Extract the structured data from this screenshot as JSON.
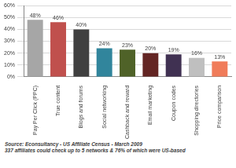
{
  "chart_data": {
    "type": "bar",
    "categories": [
      "Pay Per Click (PPC)",
      "True content",
      "Blogs and forums",
      "Social networking",
      "Cashback and reward",
      "Email marketing",
      "Coupon codes",
      "Shopping directories",
      "Price comparison"
    ],
    "values": [
      48,
      46,
      40,
      24,
      23,
      20,
      19,
      16,
      13
    ],
    "value_labels": [
      "48%",
      "46%",
      "40%",
      "24%",
      "23%",
      "20%",
      "19%",
      "16%",
      "13%"
    ],
    "data_labels": true,
    "colors": [
      "#a6a6a6",
      "#c0504d",
      "#404040",
      "#31859c",
      "#4f6228",
      "#632523",
      "#403152",
      "#bfbfbf",
      "#f07c5a"
    ],
    "ylim": [
      0,
      60
    ],
    "yticks": [
      {
        "value": 0,
        "label": "0%"
      },
      {
        "value": 10,
        "label": "10%"
      },
      {
        "value": 20,
        "label": "20%"
      },
      {
        "value": 30,
        "label": "30%"
      },
      {
        "value": 40,
        "label": "40%"
      },
      {
        "value": 50,
        "label": "50%"
      },
      {
        "value": 60,
        "label": "60%"
      }
    ],
    "grid": true,
    "annotations": [
      "Source: Econsultancy - US Affiliate Census - March 2009",
      "337 affiliates could check up to 5 networks & 76% of which were US-based"
    ]
  }
}
